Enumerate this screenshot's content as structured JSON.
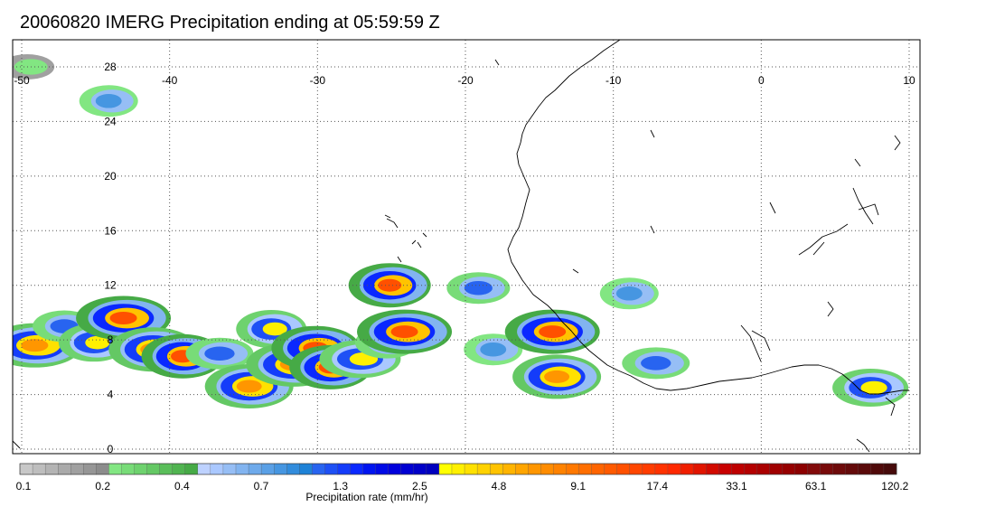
{
  "title": "20060820 IMERG Precipitation ending at 05:59:59 Z",
  "map": {
    "lon_range": [
      -50,
      10
    ],
    "lat_range": [
      -0.5,
      30.5
    ],
    "lon_ticks": [
      -50,
      -40,
      -30,
      -20,
      -10,
      0,
      10
    ],
    "lat_ticks": [
      0,
      4,
      8,
      12,
      16,
      20,
      24,
      28
    ],
    "lon_tick_labels": [
      "-50",
      "-40",
      "-30",
      "-20",
      "-10",
      "0",
      "10"
    ],
    "lat_tick_labels": [
      "0",
      "4",
      "8",
      "12",
      "16",
      "20",
      "24",
      "28"
    ],
    "grid": true,
    "coastline": "West Africa",
    "precip_cells": [
      {
        "lon": -49.0,
        "lat": 7.6,
        "rate": 9.1
      },
      {
        "lon": -47.0,
        "lat": 9.0,
        "rate": 2.5
      },
      {
        "lon": -45.0,
        "lat": 7.8,
        "rate": 4.8
      },
      {
        "lon": -43.0,
        "lat": 9.6,
        "rate": 17.4
      },
      {
        "lon": -41.0,
        "lat": 7.3,
        "rate": 9.1
      },
      {
        "lon": -39.0,
        "lat": 6.8,
        "rate": 17.4
      },
      {
        "lon": -36.5,
        "lat": 7.0,
        "rate": 2.5
      },
      {
        "lon": -34.5,
        "lat": 4.6,
        "rate": 9.1
      },
      {
        "lon": -33.0,
        "lat": 8.8,
        "rate": 4.8
      },
      {
        "lon": -31.5,
        "lat": 6.2,
        "rate": 9.1
      },
      {
        "lon": -30.0,
        "lat": 7.4,
        "rate": 17.4
      },
      {
        "lon": -29.0,
        "lat": 6.0,
        "rate": 17.4
      },
      {
        "lon": -27.0,
        "lat": 6.6,
        "rate": 4.8
      },
      {
        "lon": -25.2,
        "lat": 7.8,
        "rate": 2.5
      },
      {
        "lon": -25.0,
        "lat": 12.0,
        "rate": 17.4
      },
      {
        "lon": -24.0,
        "lat": 8.6,
        "rate": 17.4
      },
      {
        "lon": -19.0,
        "lat": 11.8,
        "rate": 2.5
      },
      {
        "lon": -18.0,
        "lat": 7.3,
        "rate": 1.3
      },
      {
        "lon": -14.0,
        "lat": 8.6,
        "rate": 17.4
      },
      {
        "lon": -13.7,
        "lat": 5.3,
        "rate": 9.1
      },
      {
        "lon": -8.8,
        "lat": 11.4,
        "rate": 1.3
      },
      {
        "lon": -7.0,
        "lat": 6.3,
        "rate": 2.5
      },
      {
        "lon": 7.5,
        "lat": 4.5,
        "rate": 4.8
      },
      {
        "lon": -44.0,
        "lat": 25.5,
        "rate": 1.3
      },
      {
        "lon": -49.5,
        "lat": 28.0,
        "rate": 0.4
      }
    ]
  },
  "colorbar": {
    "colors": [
      "#c8c8c8",
      "#bebebe",
      "#b4b4b4",
      "#aaaaaa",
      "#a0a0a0",
      "#969696",
      "#8c8c8c",
      "#82e682",
      "#78dc78",
      "#6ed26e",
      "#64c864",
      "#5abe5a",
      "#50b450",
      "#46aa46",
      "#bed2ff",
      "#aac8ff",
      "#96bef5",
      "#82b4f0",
      "#6eaaeb",
      "#5aa0e6",
      "#4696e1",
      "#328cdc",
      "#1e82d7",
      "#2864f0",
      "#1e50f5",
      "#143cfa",
      "#0a28ff",
      "#0014f0",
      "#000ae6",
      "#0000dc",
      "#0000d2",
      "#0000c8",
      "#0000be",
      "#ffff00",
      "#fff000",
      "#ffe100",
      "#ffd200",
      "#ffc300",
      "#ffb400",
      "#ffa500",
      "#ff9600",
      "#ff8c00",
      "#ff8200",
      "#ff7800",
      "#ff6e00",
      "#ff6400",
      "#ff5a00",
      "#ff5000",
      "#ff4600",
      "#ff3c00",
      "#ff3200",
      "#ff2800",
      "#f01e00",
      "#e11400",
      "#d20a00",
      "#c80000",
      "#be0000",
      "#b40000",
      "#aa0000",
      "#a00000",
      "#960000",
      "#8c0000",
      "#820a0a",
      "#780a0a",
      "#6e0a0a",
      "#640a0a",
      "#5a0a0a",
      "#500a0a",
      "#460a0a"
    ],
    "labels": [
      "0.1",
      "0.2",
      "0.4",
      "0.7",
      "1.3",
      "2.5",
      "4.8",
      "9.1",
      "17.4",
      "33.1",
      "63.1",
      "120.2"
    ],
    "label": "Precipitation rate (mm/hr)"
  }
}
